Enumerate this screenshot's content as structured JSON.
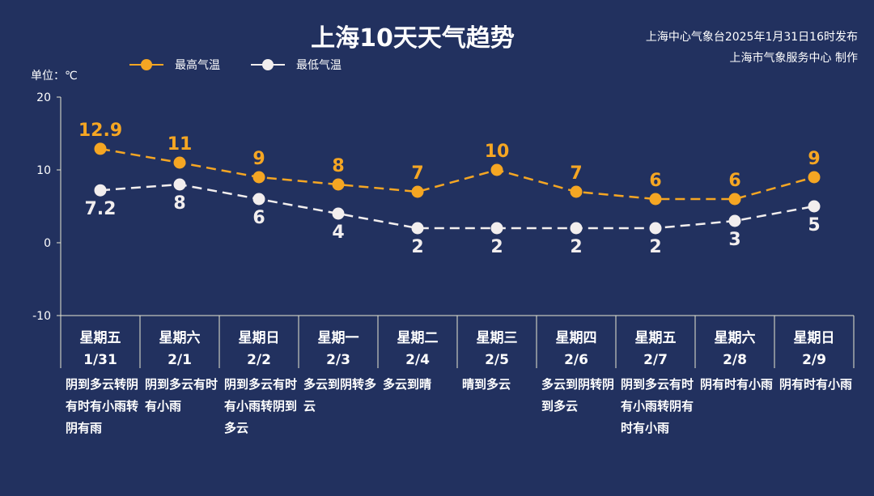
{
  "header": {
    "title": "上海10天天气趋势",
    "source_line1": "上海中心气象台2025年1月31日16时发布",
    "source_line2": "上海市气象服务中心 制作",
    "unit": "单位：℃"
  },
  "colors": {
    "high": "#f5a623",
    "low": "#f2eeee",
    "background": "#22315f",
    "axis": "#e8e8d0"
  },
  "chart_data": {
    "type": "line",
    "title": "上海10天天气趋势",
    "ylabel": "单位：℃",
    "ylim": [
      -10,
      20
    ],
    "yticks": [
      "20",
      "10",
      "0",
      "-10"
    ],
    "grid": false,
    "legend_position": "top-left",
    "categories": [
      "1/31",
      "2/1",
      "2/2",
      "2/3",
      "2/4",
      "2/5",
      "2/6",
      "2/7",
      "2/8",
      "2/9"
    ],
    "weekdays": [
      "星期五",
      "星期六",
      "星期日",
      "星期一",
      "星期二",
      "星期三",
      "星期四",
      "星期五",
      "星期六",
      "星期日"
    ],
    "series": [
      {
        "name": "最高气温",
        "values": [
          12.9,
          11,
          9,
          8,
          7,
          10,
          7,
          6,
          6,
          9
        ],
        "labels": [
          "12.9",
          "11",
          "9",
          "8",
          "7",
          "10",
          "7",
          "6",
          "6",
          "9"
        ]
      },
      {
        "name": "最低气温",
        "values": [
          7.2,
          8,
          6,
          4,
          2,
          2,
          2,
          2,
          3,
          5
        ],
        "labels": [
          "7.2",
          "8",
          "6",
          "4",
          "2",
          "2",
          "2",
          "2",
          "3",
          "5"
        ]
      }
    ],
    "descriptions": [
      "阴到多云转阴有时有小雨转阴有雨",
      "阴到多云有时有小雨",
      "阴到多云有时有小雨转阴到多云",
      "多云到阴转多云",
      "多云到晴",
      "晴到多云",
      "多云到阴转阴到多云",
      "阴到多云有时有小雨转阴有时有小雨",
      "阴有时有小雨",
      "阴有时有小雨"
    ]
  }
}
